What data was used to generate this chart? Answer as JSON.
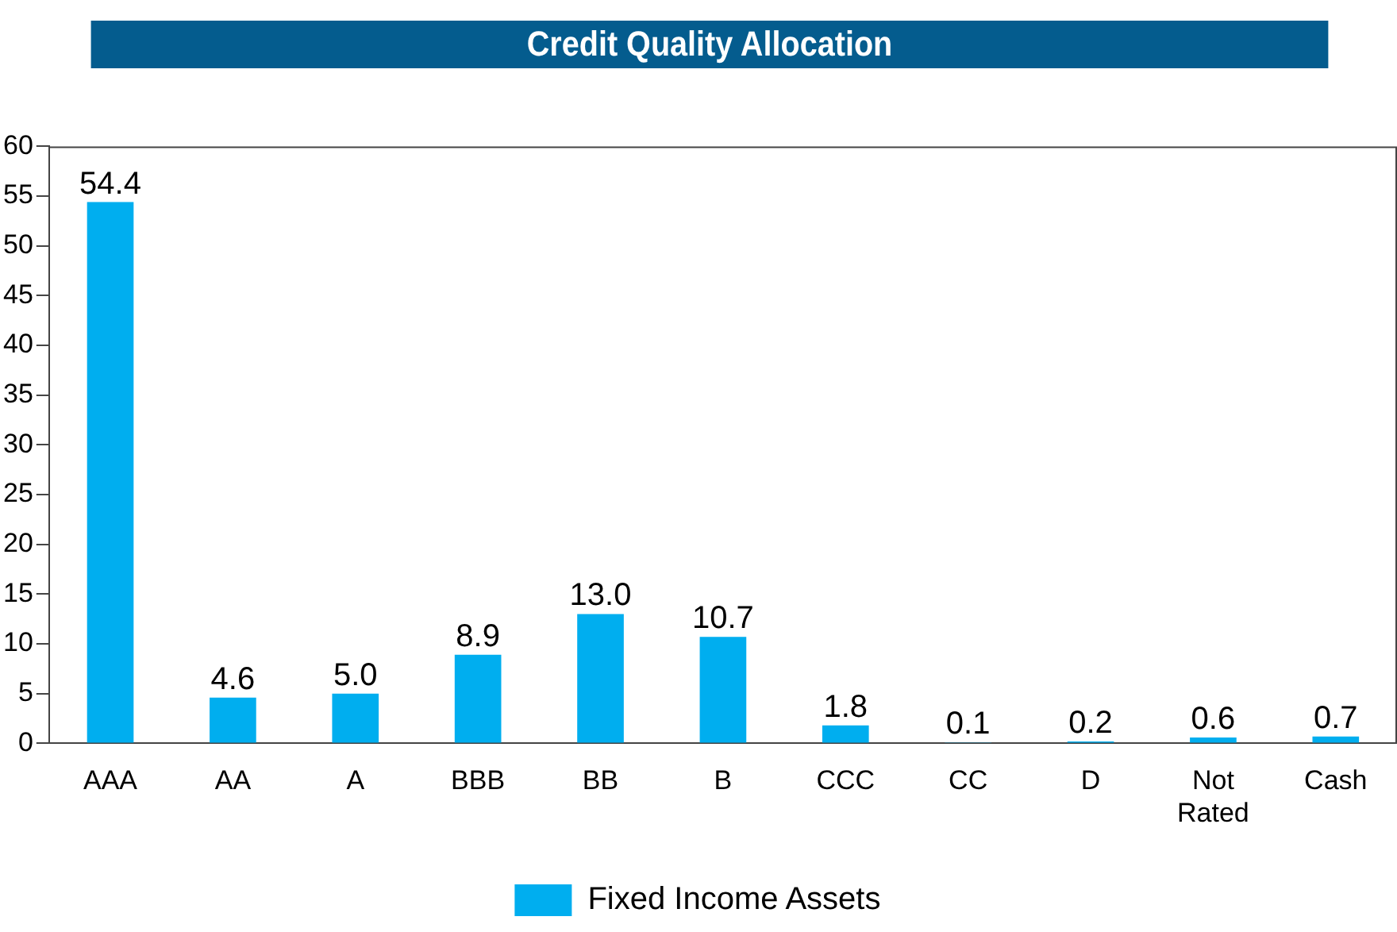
{
  "chart_data": {
    "type": "bar",
    "title": "Credit Quality Allocation",
    "categories": [
      "AAA",
      "AA",
      "A",
      "BBB",
      "BB",
      "B",
      "CCC",
      "CC",
      "D",
      "Not Rated",
      "Cash"
    ],
    "series": [
      {
        "name": "Fixed Income Assets",
        "color": "#00aeef",
        "values": [
          54.4,
          4.6,
          5.0,
          8.9,
          13.0,
          10.7,
          1.8,
          0.1,
          0.2,
          0.6,
          0.7
        ],
        "value_labels": [
          "54.4",
          "4.6",
          "5.0",
          "8.9",
          "13.0",
          "10.7",
          "1.8",
          "0.1",
          "0.2",
          "0.6",
          "0.7"
        ]
      }
    ],
    "ylim": [
      0,
      60
    ],
    "yticks": [
      0,
      5,
      10,
      15,
      20,
      25,
      30,
      35,
      40,
      45,
      50,
      55,
      60
    ],
    "grid": false,
    "legend": "bottom"
  }
}
